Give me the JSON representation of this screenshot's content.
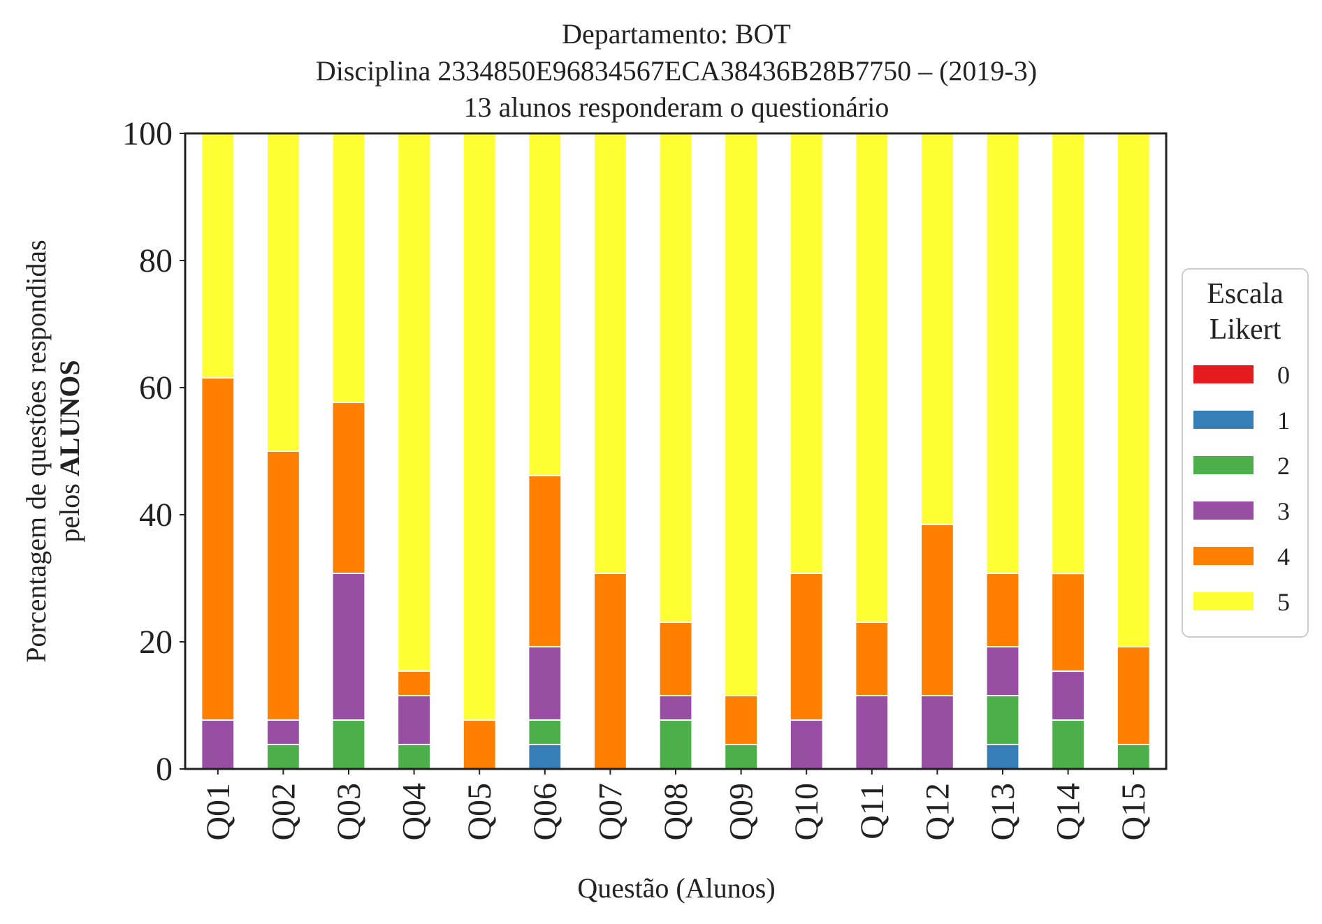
{
  "chart_data": {
    "type": "bar",
    "stacked": true,
    "title_lines": [
      "Departamento: BOT",
      "Disciplina 2334850E96834567ECA38436B28B7750 – (2019-3)",
      "13 alunos responderam o questionário"
    ],
    "xlabel": "Questão (Alunos)",
    "ylabel_line1": "Porcentagem de questões respondidas",
    "ylabel_line2_prefix": "pelos ",
    "ylabel_line2_bold": "ALUNOS",
    "ylim": [
      0,
      100
    ],
    "yticks": [
      "0",
      "20",
      "40",
      "60",
      "80",
      "100"
    ],
    "grid": false,
    "legend_position": "right",
    "legend_title_lines": [
      "Escala",
      "Likert"
    ],
    "categories": [
      "Q01",
      "Q02",
      "Q03",
      "Q04",
      "Q05",
      "Q06",
      "Q07",
      "Q08",
      "Q09",
      "Q10",
      "Q11",
      "Q12",
      "Q13",
      "Q14",
      "Q15"
    ],
    "series": [
      {
        "name": "0",
        "color": "#e41a1c",
        "values": [
          0,
          0,
          0,
          0,
          0,
          0,
          0,
          0,
          0,
          0,
          0,
          0,
          0,
          0,
          0
        ]
      },
      {
        "name": "1",
        "color": "#377eb8",
        "values": [
          0,
          0,
          0,
          0,
          0,
          3.85,
          0,
          0,
          0,
          0,
          0,
          0,
          3.85,
          0,
          0
        ]
      },
      {
        "name": "2",
        "color": "#4daf4a",
        "values": [
          0,
          3.85,
          7.69,
          3.85,
          0,
          3.85,
          0,
          7.69,
          3.85,
          0,
          0,
          0,
          7.69,
          7.69,
          3.85
        ]
      },
      {
        "name": "3",
        "color": "#984ea3",
        "values": [
          7.69,
          3.85,
          23.08,
          7.69,
          0,
          11.54,
          0,
          3.85,
          0,
          7.69,
          11.54,
          11.54,
          7.69,
          7.69,
          0
        ]
      },
      {
        "name": "4",
        "color": "#ff7f00",
        "values": [
          53.85,
          42.31,
          26.92,
          3.85,
          7.69,
          26.92,
          30.77,
          11.54,
          7.69,
          23.08,
          11.54,
          26.92,
          11.54,
          15.38,
          15.38
        ]
      },
      {
        "name": "5",
        "color": "#ffff33",
        "values": [
          38.46,
          50.0,
          42.31,
          84.62,
          92.31,
          53.85,
          69.23,
          76.92,
          88.46,
          69.23,
          76.92,
          61.54,
          69.23,
          69.23,
          80.77
        ]
      }
    ]
  }
}
